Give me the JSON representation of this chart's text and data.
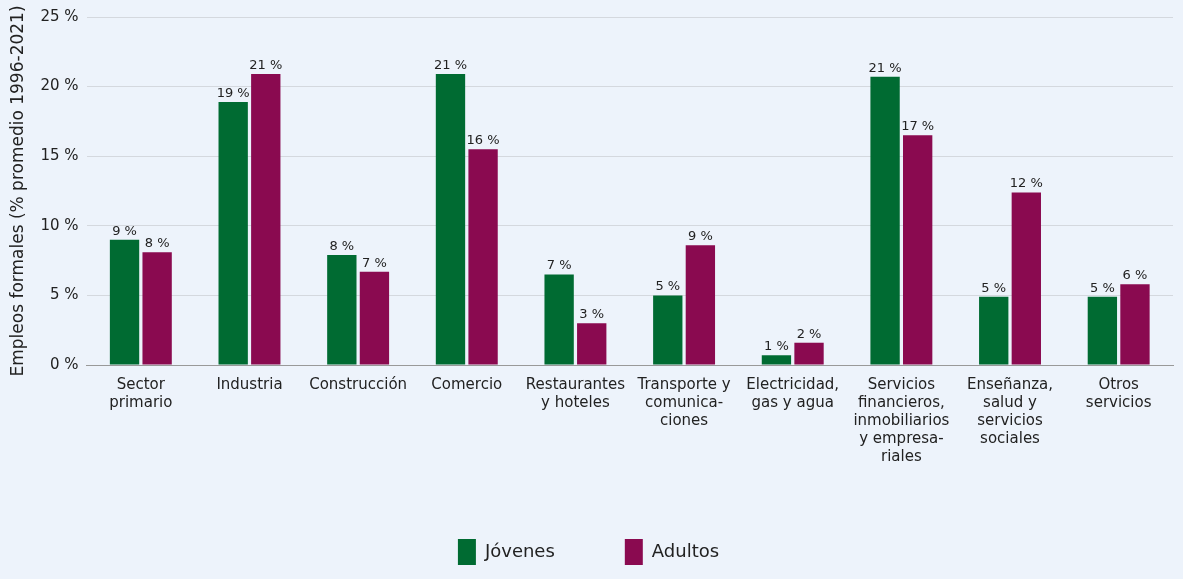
{
  "chart_data": {
    "type": "bar",
    "ylabel": "Empleos formales (% promedio 1996-2021)",
    "categories": [
      "Sector primario",
      "Industria",
      "Construcción",
      "Comercio",
      "Restaurantes y hoteles",
      "Transporte y comunica- ciones",
      "Electricidad, gas y agua",
      "Servicios financieros, inmobiliarios y empresa- riales",
      "Enseñanza, salud y servicios sociales",
      "Otros servicios"
    ],
    "series": [
      {
        "name": "Jóvenes",
        "color": "#006b32",
        "values": [
          9.0,
          18.9,
          7.9,
          20.9,
          6.5,
          5.0,
          0.7,
          20.7,
          4.9,
          4.9
        ],
        "value_labels": [
          "9 %",
          "19 %",
          "8 %",
          "21 %",
          "7 %",
          "5 %",
          "1 %",
          "21 %",
          "5 %",
          "5 %"
        ]
      },
      {
        "name": "Adultos",
        "color": "#8a0a50",
        "values": [
          8.1,
          20.9,
          6.7,
          15.5,
          3.0,
          8.6,
          1.6,
          16.5,
          12.4,
          5.8
        ],
        "value_labels": [
          "8 %",
          "21 %",
          "7 %",
          "16 %",
          "3 %",
          "9 %",
          "2 %",
          "17 %",
          "12 %",
          "6 %"
        ]
      }
    ],
    "ylim": [
      0,
      25
    ],
    "yticks": [
      {
        "value": 0,
        "label": "0 %"
      },
      {
        "value": 5,
        "label": "5 %"
      },
      {
        "value": 10,
        "label": "10 %"
      },
      {
        "value": 15,
        "label": "15 %"
      },
      {
        "value": 20,
        "label": "20 %"
      },
      {
        "value": 25,
        "label": "25 %"
      }
    ],
    "grid": "y",
    "legend": "bottom"
  }
}
